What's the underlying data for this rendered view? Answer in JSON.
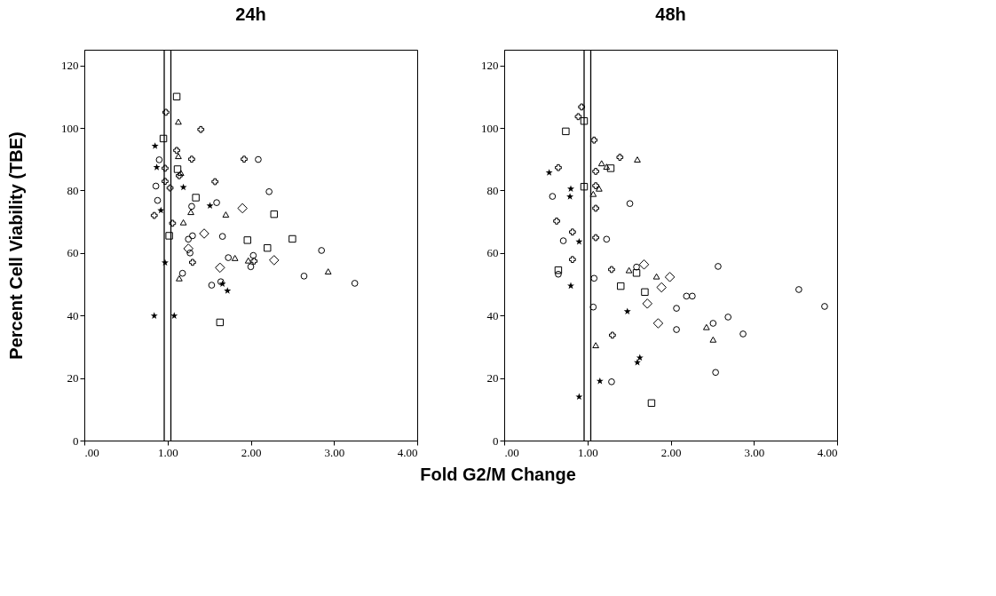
{
  "chart_data": [
    {
      "type": "scatter",
      "title": "24h",
      "xlabel": "Fold G2/M Change",
      "ylabel": "Percent Cell Viability (TBE)",
      "xlim": [
        0,
        4
      ],
      "ylim": [
        0,
        125
      ],
      "xticks": [
        {
          "value": 0,
          "label": ".00"
        },
        {
          "value": 1,
          "label": "1.00"
        },
        {
          "value": 2,
          "label": "2.00"
        },
        {
          "value": 3,
          "label": "3.00"
        },
        {
          "value": 4,
          "label": "4.00"
        }
      ],
      "yticks": [
        0,
        20,
        40,
        60,
        80,
        100,
        120
      ],
      "grid": false,
      "ref_lines": [
        {
          "axis": "x",
          "value": 0.96,
          "color": "#000000"
        },
        {
          "axis": "x",
          "value": 1.04,
          "color": "#000000"
        }
      ],
      "series": [
        {
          "marker": "circle",
          "color": "#000000",
          "x": [
            0.9,
            0.86,
            2.22,
            0.88,
            1.59,
            1.29,
            1.3,
            1.25,
            1.66,
            1.27,
            2.85,
            2.09,
            1.73,
            2.03,
            2.0,
            1.18,
            2.64,
            3.25,
            1.53,
            1.64
          ],
          "values": [
            89.8,
            81.4,
            79.6,
            76.8,
            76.1,
            74.9,
            65.5,
            64.4,
            65.3,
            60,
            60.8,
            89.9,
            58.5,
            59.2,
            55.6,
            53.5,
            52.6,
            50.3,
            49.7,
            50.8
          ]
        },
        {
          "marker": "square",
          "color": "#000000",
          "x": [
            1.11,
            0.95,
            1.12,
            1.34,
            2.28,
            1.02,
            1.96,
            2.5,
            2.2,
            1.63
          ],
          "values": [
            110,
            96.6,
            86.8,
            77.7,
            72.4,
            65.5,
            64.1,
            64.5,
            61.6,
            37.8
          ]
        },
        {
          "marker": "triangle",
          "color": "#000000",
          "x": [
            1.13,
            1.13,
            1.16,
            1.28,
            1.7,
            1.19,
            1.81,
            1.97,
            1.14,
            2.93
          ],
          "values": [
            102,
            91,
            85.6,
            73.1,
            72.3,
            69.8,
            58.4,
            57.6,
            51.9,
            54.1
          ]
        },
        {
          "marker": "diamond",
          "color": "#000000",
          "x": [
            1.9,
            1.44,
            1.25,
            1.63,
            2.28
          ],
          "values": [
            74.3,
            66.2,
            61.4,
            55.3,
            57.7
          ]
        },
        {
          "marker": "cross",
          "color": "#000000",
          "x": [
            0.98,
            1.4,
            1.11,
            1.29,
            1.92,
            0.97,
            1.14,
            1.57,
            0.97,
            1.03,
            0.84,
            1.06,
            1.3,
            2.04
          ],
          "values": [
            105,
            99.5,
            92.8,
            90,
            90,
            87.1,
            84.7,
            82.8,
            82.9,
            80.8,
            72,
            69.5,
            57,
            57.4
          ]
        },
        {
          "marker": "star",
          "color": "#000000",
          "x": [
            0.85,
            0.87,
            1.19,
            1.51,
            0.92,
            0.97,
            1.66,
            1.72,
            0.84,
            1.08
          ],
          "values": [
            94.2,
            87.4,
            81,
            75.1,
            73.6,
            56.9,
            50.1,
            47.9,
            39.9,
            39.9
          ]
        }
      ]
    },
    {
      "type": "scatter",
      "title": "48h",
      "xlim": [
        0,
        4
      ],
      "ylim": [
        0,
        125
      ],
      "xticks": [
        {
          "value": 0,
          "label": ".00"
        },
        {
          "value": 1,
          "label": "1.00"
        },
        {
          "value": 2,
          "label": "2.00"
        },
        {
          "value": 3,
          "label": "3.00"
        },
        {
          "value": 4,
          "label": "4.00"
        }
      ],
      "yticks": [
        0,
        20,
        40,
        60,
        80,
        100,
        120
      ],
      "grid": false,
      "ref_lines": [
        {
          "axis": "x",
          "value": 0.96,
          "color": "#000000"
        },
        {
          "axis": "x",
          "value": 1.04,
          "color": "#000000"
        }
      ],
      "series": [
        {
          "marker": "circle",
          "color": "#000000",
          "x": [
            0.58,
            1.51,
            0.71,
            1.23,
            0.65,
            1.59,
            1.08,
            1.07,
            2.07,
            2.19,
            2.26,
            2.57,
            2.07,
            2.51,
            2.69,
            2.87,
            3.54,
            3.85,
            1.29,
            2.54
          ],
          "values": [
            78.1,
            75.8,
            63.9,
            64.4,
            53.2,
            55.5,
            51.9,
            42.7,
            42.3,
            46.2,
            46.2,
            55.7,
            35.5,
            37.5,
            39.5,
            34.1,
            48.3,
            42.9,
            18.8,
            21.8
          ]
        },
        {
          "marker": "square",
          "color": "#000000",
          "x": [
            0.96,
            0.74,
            1.28,
            0.96,
            0.65,
            1.59,
            1.4,
            1.69,
            1.77
          ],
          "values": [
            102.2,
            98.9,
            87.1,
            81.2,
            54.5,
            53.6,
            49.4,
            47.5,
            12
          ]
        },
        {
          "marker": "triangle",
          "color": "#000000",
          "x": [
            1.6,
            1.17,
            1.23,
            1.14,
            1.07,
            1.5,
            1.83,
            2.43,
            2.51,
            1.1
          ],
          "values": [
            89.9,
            88.7,
            87.6,
            80.6,
            78.9,
            54.5,
            52.5,
            36.3,
            32.3,
            30.5
          ]
        },
        {
          "marker": "diamond",
          "color": "#000000",
          "x": [
            1.68,
            1.99,
            1.89,
            1.72,
            1.85
          ],
          "values": [
            56.3,
            52.3,
            49,
            43.8,
            37.5
          ]
        },
        {
          "marker": "cross",
          "color": "#000000",
          "x": [
            0.93,
            0.89,
            1.08,
            1.39,
            1.1,
            0.65,
            1.1,
            1.1,
            0.63,
            0.82,
            1.1,
            0.82,
            1.29,
            1.3
          ],
          "values": [
            106.7,
            103.6,
            96.1,
            90.6,
            86.1,
            87.3,
            81.5,
            74.3,
            70.2,
            66.7,
            64.9,
            57.9,
            54.7,
            33.7
          ]
        },
        {
          "marker": "star",
          "color": "#000000",
          "x": [
            0.54,
            0.8,
            0.79,
            0.9,
            0.8,
            1.48,
            1.6,
            1.63,
            1.15,
            0.9
          ],
          "values": [
            85.7,
            80.5,
            78,
            63.6,
            49.5,
            41.3,
            25,
            26.5,
            19,
            14
          ]
        }
      ]
    }
  ]
}
